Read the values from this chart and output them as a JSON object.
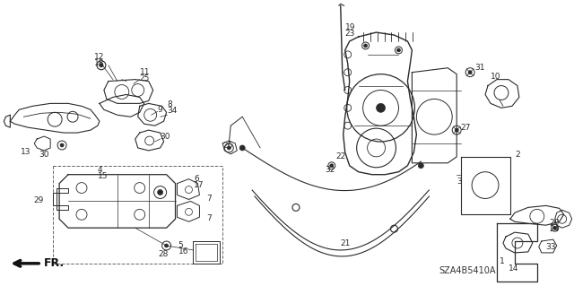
{
  "diagram_code": "SZA4B5410A",
  "bg_color": "#ffffff",
  "line_color": "#2a2a2a",
  "text_color": "#2a2a2a"
}
